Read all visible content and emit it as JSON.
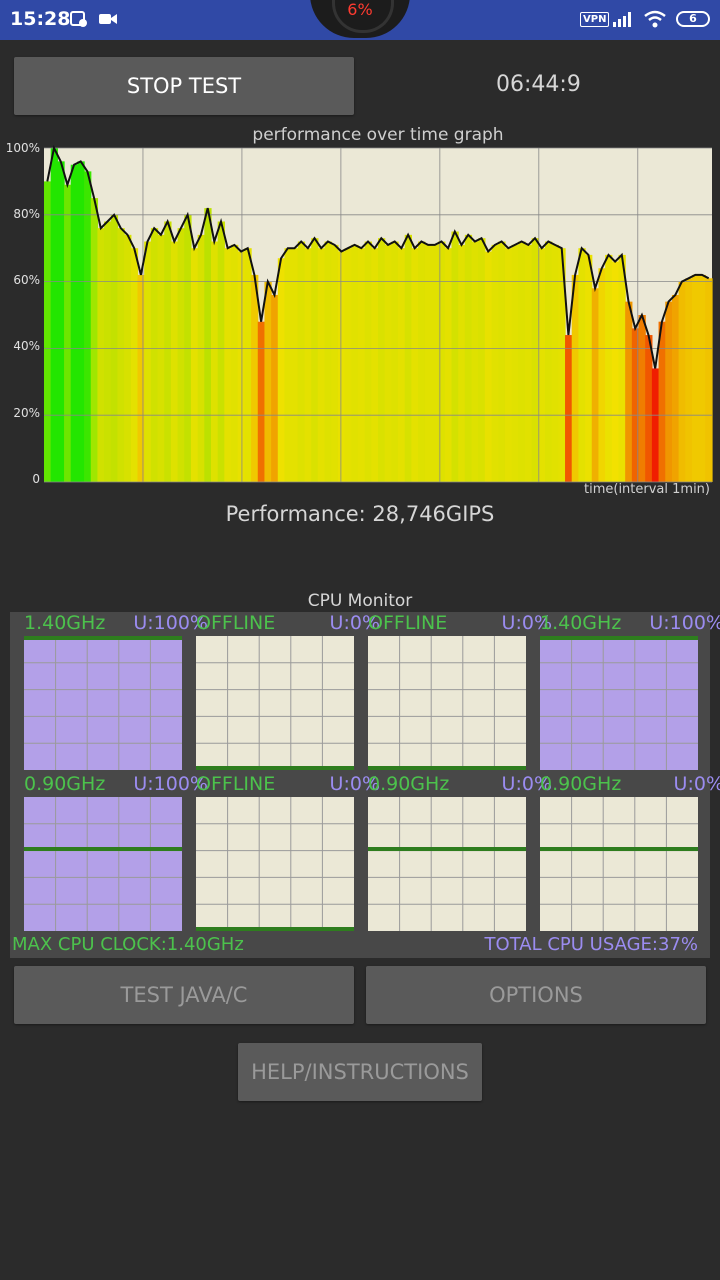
{
  "status_bar": {
    "time": "15:28",
    "battery_indicator": "6%",
    "vpn": "VPN",
    "battery_level": "6",
    "icons": [
      "photo-settings-icon",
      "video-camera-icon",
      "signal-icon",
      "wifi-icon",
      "battery-icon"
    ]
  },
  "controls": {
    "stop_label": "STOP TEST",
    "timer": "06:44:9"
  },
  "graph": {
    "title": "performance over time graph",
    "y_ticks": [
      "100%",
      "80%",
      "60%",
      "40%",
      "20%",
      "0"
    ],
    "x_label": "time(interval 1min)"
  },
  "chart_data": {
    "type": "area",
    "title": "performance over time graph",
    "xlabel": "time(interval 1min)",
    "ylabel": "",
    "ylim": [
      0,
      100
    ],
    "y_ticks": [
      0,
      20,
      40,
      60,
      80,
      100
    ],
    "grid": true,
    "series": [
      {
        "values": [
          90,
          100,
          96,
          89,
          95,
          96,
          93,
          85,
          76,
          78,
          80,
          76,
          74,
          70,
          62,
          72,
          76,
          74,
          78,
          72,
          76,
          80,
          70,
          74,
          82,
          72,
          78,
          70,
          71,
          69,
          70,
          62,
          48,
          60,
          56,
          67,
          70,
          70,
          72,
          70,
          73,
          70,
          72,
          71,
          69,
          70,
          71,
          70,
          72,
          70,
          73,
          71,
          72,
          70,
          74,
          70,
          72,
          71,
          71,
          72,
          70,
          75,
          71,
          74,
          72,
          73,
          69,
          71,
          72,
          70,
          71,
          72,
          71,
          73,
          70,
          72,
          71,
          70,
          44,
          62,
          70,
          68,
          58,
          64,
          68,
          66,
          68,
          54,
          46,
          50,
          44,
          34,
          48,
          54,
          56,
          60,
          61,
          62,
          62,
          61
        ]
      }
    ]
  },
  "performance": {
    "text": "Performance: 28,746GIPS"
  },
  "cpu_monitor": {
    "title": "CPU Monitor",
    "cores": [
      {
        "freq": "1.40GHz",
        "usage": "U:100%",
        "usage_fraction": 1.0,
        "offline": false
      },
      {
        "freq": "OFFLINE",
        "usage": "U:0%",
        "usage_fraction": 0.0,
        "offline": true
      },
      {
        "freq": "OFFLINE",
        "usage": "U:0%",
        "usage_fraction": 0.0,
        "offline": true
      },
      {
        "freq": "1.40GHz",
        "usage": "U:100%",
        "usage_fraction": 1.0,
        "offline": false
      },
      {
        "freq": "0.90GHz",
        "usage": "U:100%",
        "usage_fraction": 1.0,
        "offline": false
      },
      {
        "freq": "OFFLINE",
        "usage": "U:0%",
        "usage_fraction": 0.0,
        "offline": true
      },
      {
        "freq": "0.90GHz",
        "usage": "U:0%",
        "usage_fraction": 0.0,
        "offline": false
      },
      {
        "freq": "0.90GHz",
        "usage": "U:0%",
        "usage_fraction": 0.0,
        "offline": false
      }
    ],
    "max_clock": "MAX CPU CLOCK:1.40GHz",
    "total_usage": "TOTAL CPU USAGE:37%"
  },
  "buttons": {
    "test_java": "TEST JAVA/C",
    "options": "OPTIONS",
    "help": "HELP/INSTRUCTIONS"
  },
  "colors": {
    "status_bar": "#3049a6",
    "background": "#2b2b2b",
    "graph_bg": "#ebe8d6",
    "freq_green": "#4cc24c",
    "usage_purple": "#9b8cf0",
    "core_fill": "#b3a0e8",
    "core_line": "#2e7d1e"
  }
}
